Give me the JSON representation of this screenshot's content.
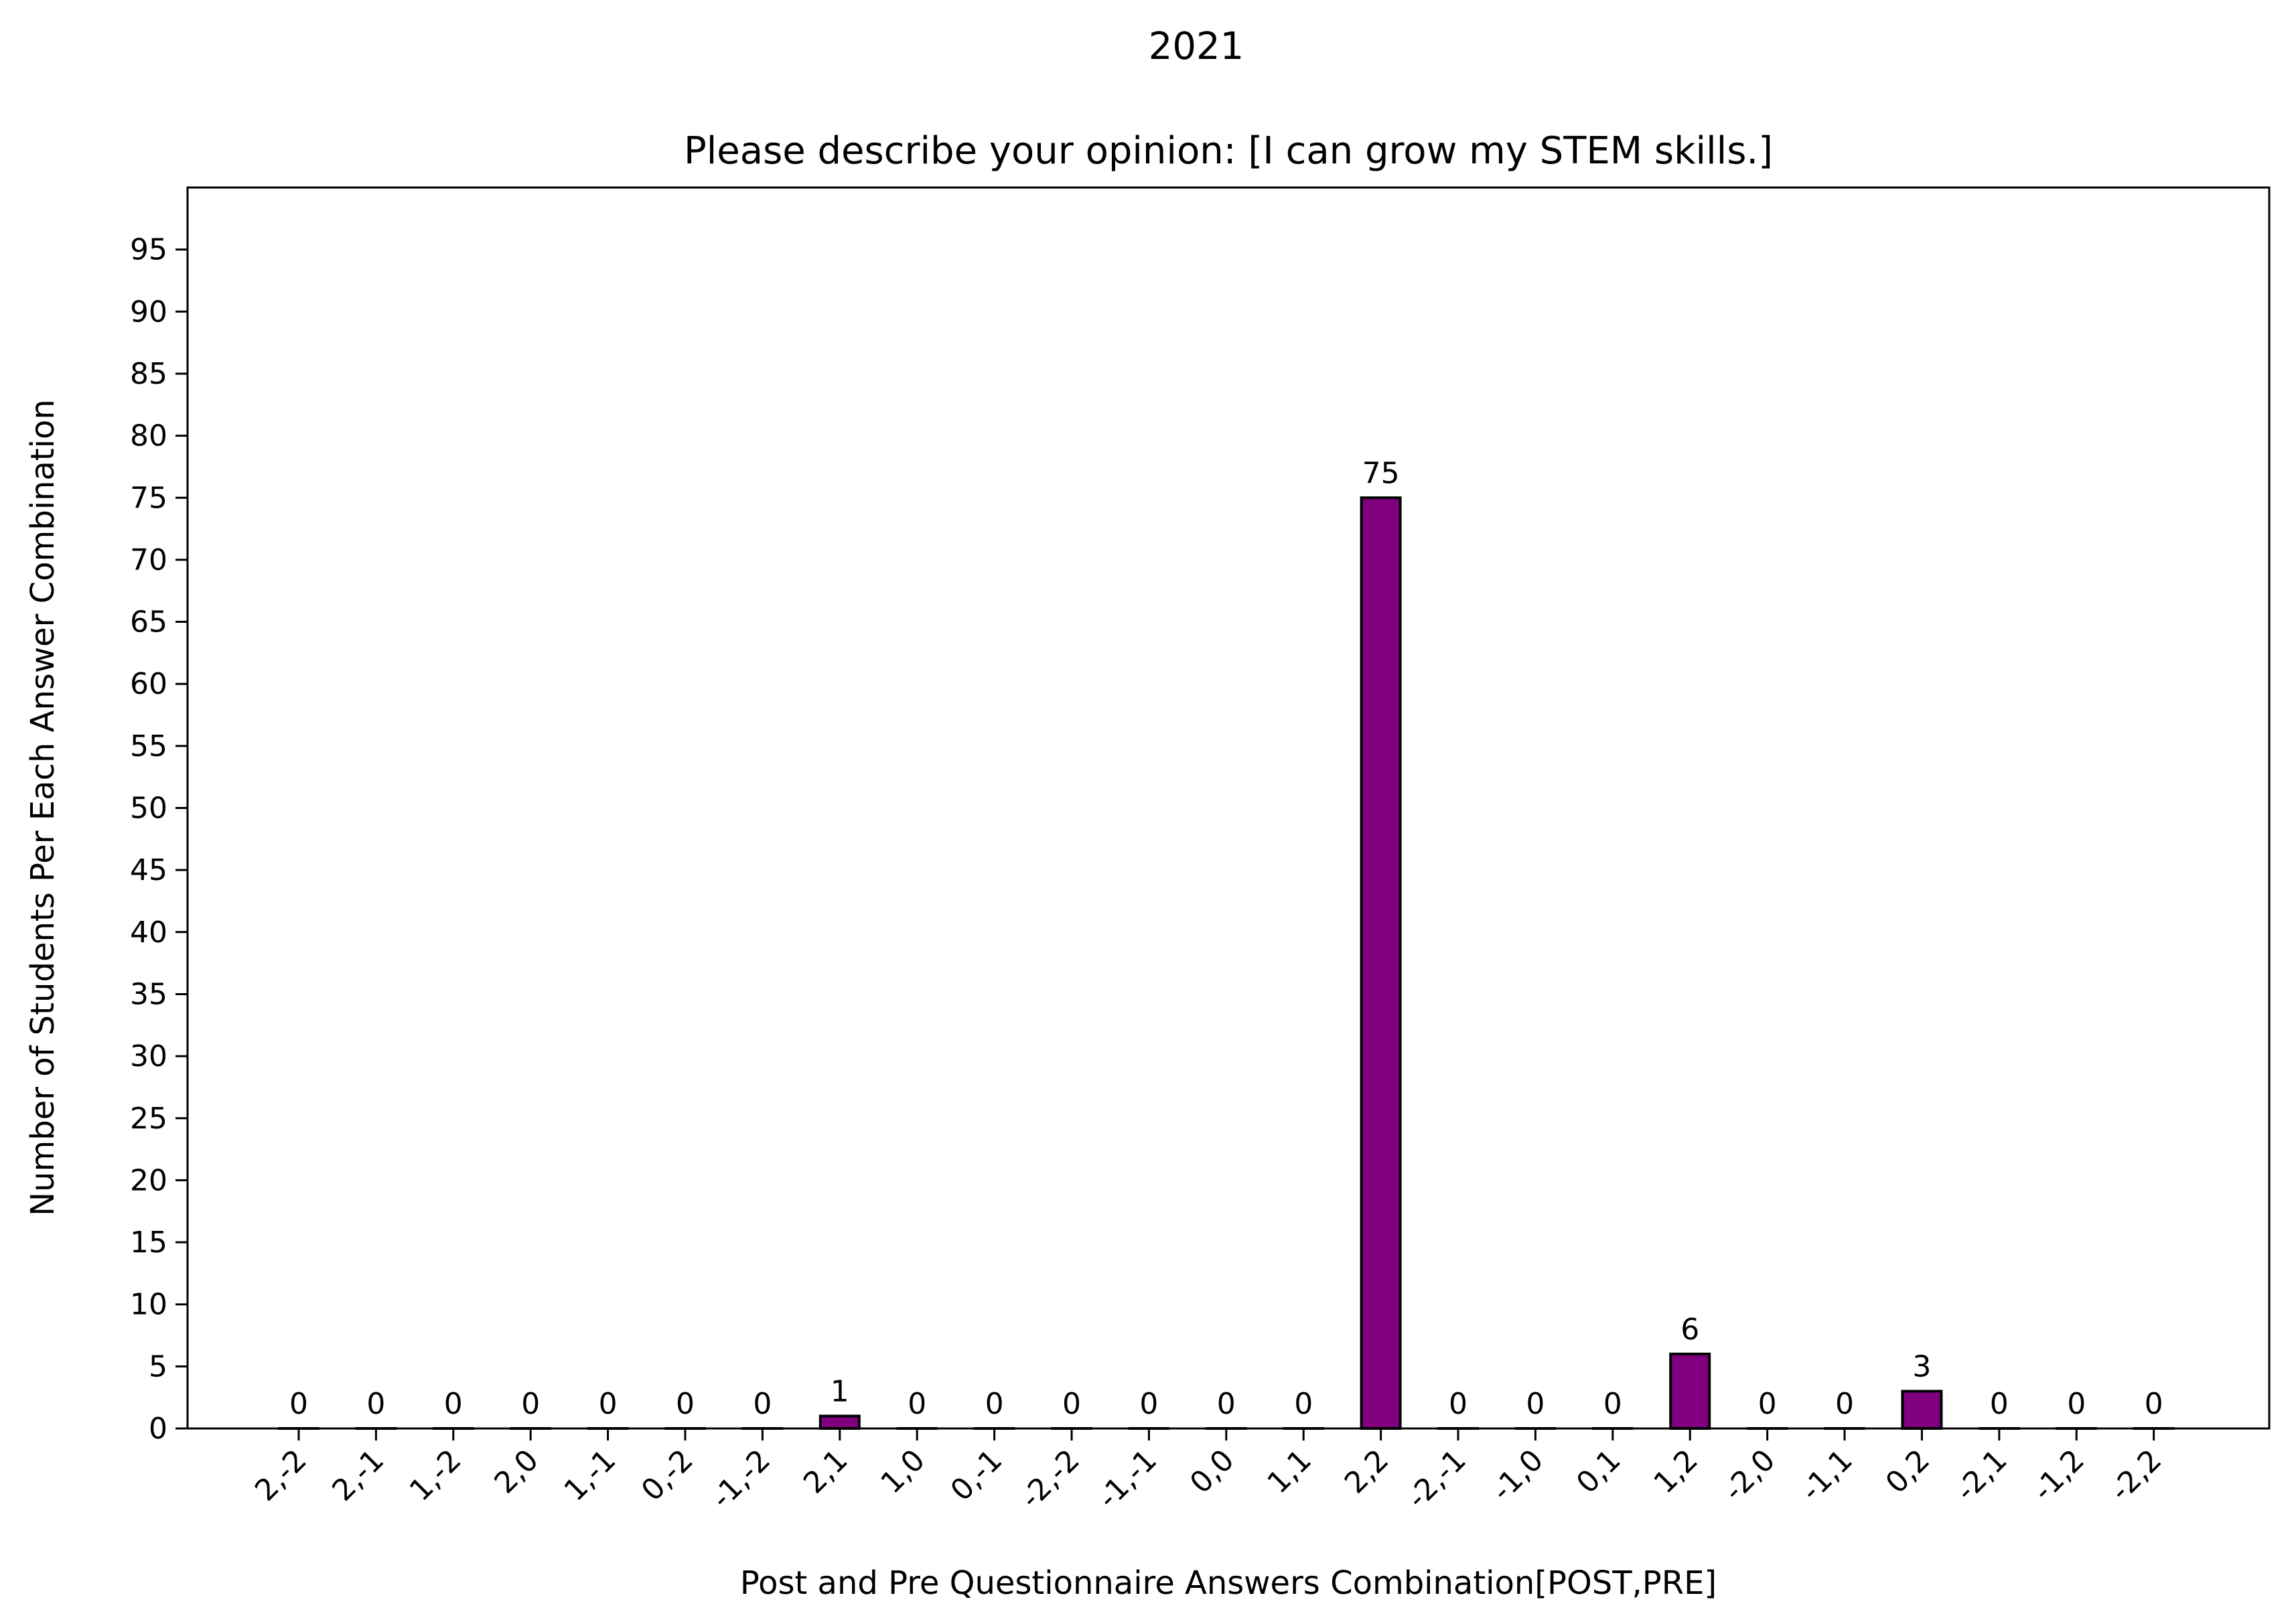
{
  "chart_data": {
    "type": "bar",
    "suptitle": "2021",
    "title": "Please describe your opinion: [I can grow my STEM skills.]",
    "xlabel": "Post and Pre Questionnaire Answers Combination[POST,PRE]",
    "ylabel": "Number of Students Per Each Answer Combination",
    "categories": [
      "2,-2",
      "2,-1",
      "1,-2",
      "2,0",
      "1,-1",
      "0,-2",
      "-1,-2",
      "2,1",
      "1,0",
      "0,-1",
      "-2,-2",
      "-1,-1",
      "0,0",
      "1,1",
      "2,2",
      "-2,-1",
      "-1,0",
      "0,1",
      "1,2",
      "-2,0",
      "-1,1",
      "0,2",
      "-2,1",
      "-1,2",
      "-2,2"
    ],
    "values": [
      0,
      0,
      0,
      0,
      0,
      0,
      0,
      1,
      0,
      0,
      0,
      0,
      0,
      0,
      75,
      0,
      0,
      0,
      6,
      0,
      0,
      3,
      0,
      0,
      0
    ],
    "data_labels": [
      "0",
      "0",
      "0",
      "0",
      "0",
      "0",
      "0",
      "1",
      "0",
      "0",
      "0",
      "0",
      "0",
      "0",
      "75",
      "0",
      "0",
      "0",
      "6",
      "0",
      "0",
      "3",
      "0",
      "0",
      "0"
    ],
    "ylim": [
      0,
      100
    ],
    "yticks": [
      "0",
      "5",
      "10",
      "15",
      "20",
      "25",
      "30",
      "35",
      "40",
      "45",
      "50",
      "55",
      "60",
      "65",
      "70",
      "75",
      "80",
      "85",
      "90",
      "95"
    ],
    "bar_color": "#800080",
    "edge_color": "#000000",
    "grid": false,
    "legend": "none"
  }
}
